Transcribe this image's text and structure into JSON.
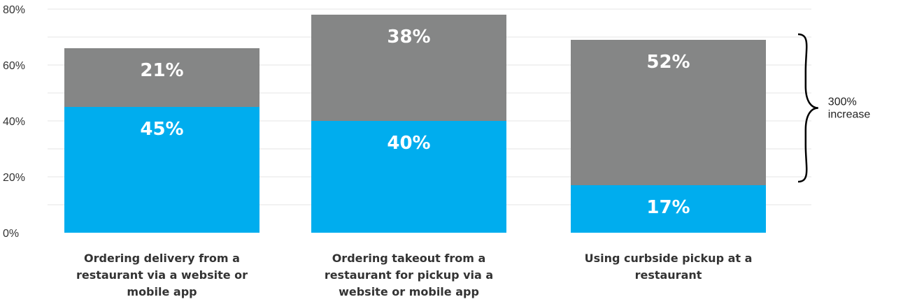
{
  "chart_data": {
    "type": "bar",
    "stacked": true,
    "categories": [
      [
        "Ordering delivery from a",
        "restaurant via a website or",
        "mobile app"
      ],
      [
        "Ordering takeout from a",
        "restaurant for pickup via a",
        "website or mobile app"
      ],
      [
        "Using curbside pickup at a",
        "restaurant"
      ]
    ],
    "series": [
      {
        "values": [
          45,
          40,
          17
        ],
        "labels": [
          "45%",
          "40%",
          "17%"
        ],
        "color": "#00adee"
      },
      {
        "values": [
          21,
          38,
          52
        ],
        "labels": [
          "21%",
          "38%",
          "52%"
        ],
        "color": "#858686"
      }
    ],
    "ylim": [
      0,
      80
    ],
    "yticks": [
      0,
      20,
      40,
      60,
      80
    ],
    "ytick_labels": [
      "0%",
      "20%",
      "40%",
      "60%",
      "80%"
    ],
    "grid": true,
    "gridline_color": "#e6e6e6",
    "annotation": {
      "text": [
        "300%",
        "increase"
      ],
      "brace_category_index": 2
    }
  }
}
